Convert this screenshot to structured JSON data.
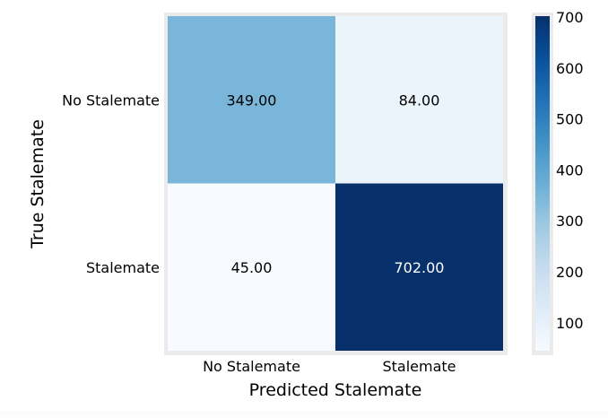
{
  "chart_data": {
    "type": "heatmap",
    "title": "",
    "xlabel": "Predicted Stalemate",
    "ylabel": "True Stalemate",
    "x_categories": [
      "No Stalemate",
      "Stalemate"
    ],
    "y_categories": [
      "No Stalemate",
      "Stalemate"
    ],
    "values": [
      [
        349,
        84
      ],
      [
        45,
        702
      ]
    ],
    "cell_labels": [
      [
        "349.00",
        "84.00"
      ],
      [
        "45.00",
        "702.00"
      ]
    ],
    "colormap": "Blues",
    "color_range": [
      45,
      702
    ],
    "colorbar": {
      "ticks": [
        100,
        200,
        300,
        400,
        500,
        600,
        700
      ],
      "tick_labels": [
        "100",
        "200",
        "300",
        "400",
        "500",
        "600",
        "700"
      ]
    },
    "grid": false
  },
  "colors": {
    "frame": "#ebebeb",
    "low": "#f7fbff",
    "high": "#08306b",
    "text_dark": "#000000",
    "text_light": "#ffffff"
  }
}
